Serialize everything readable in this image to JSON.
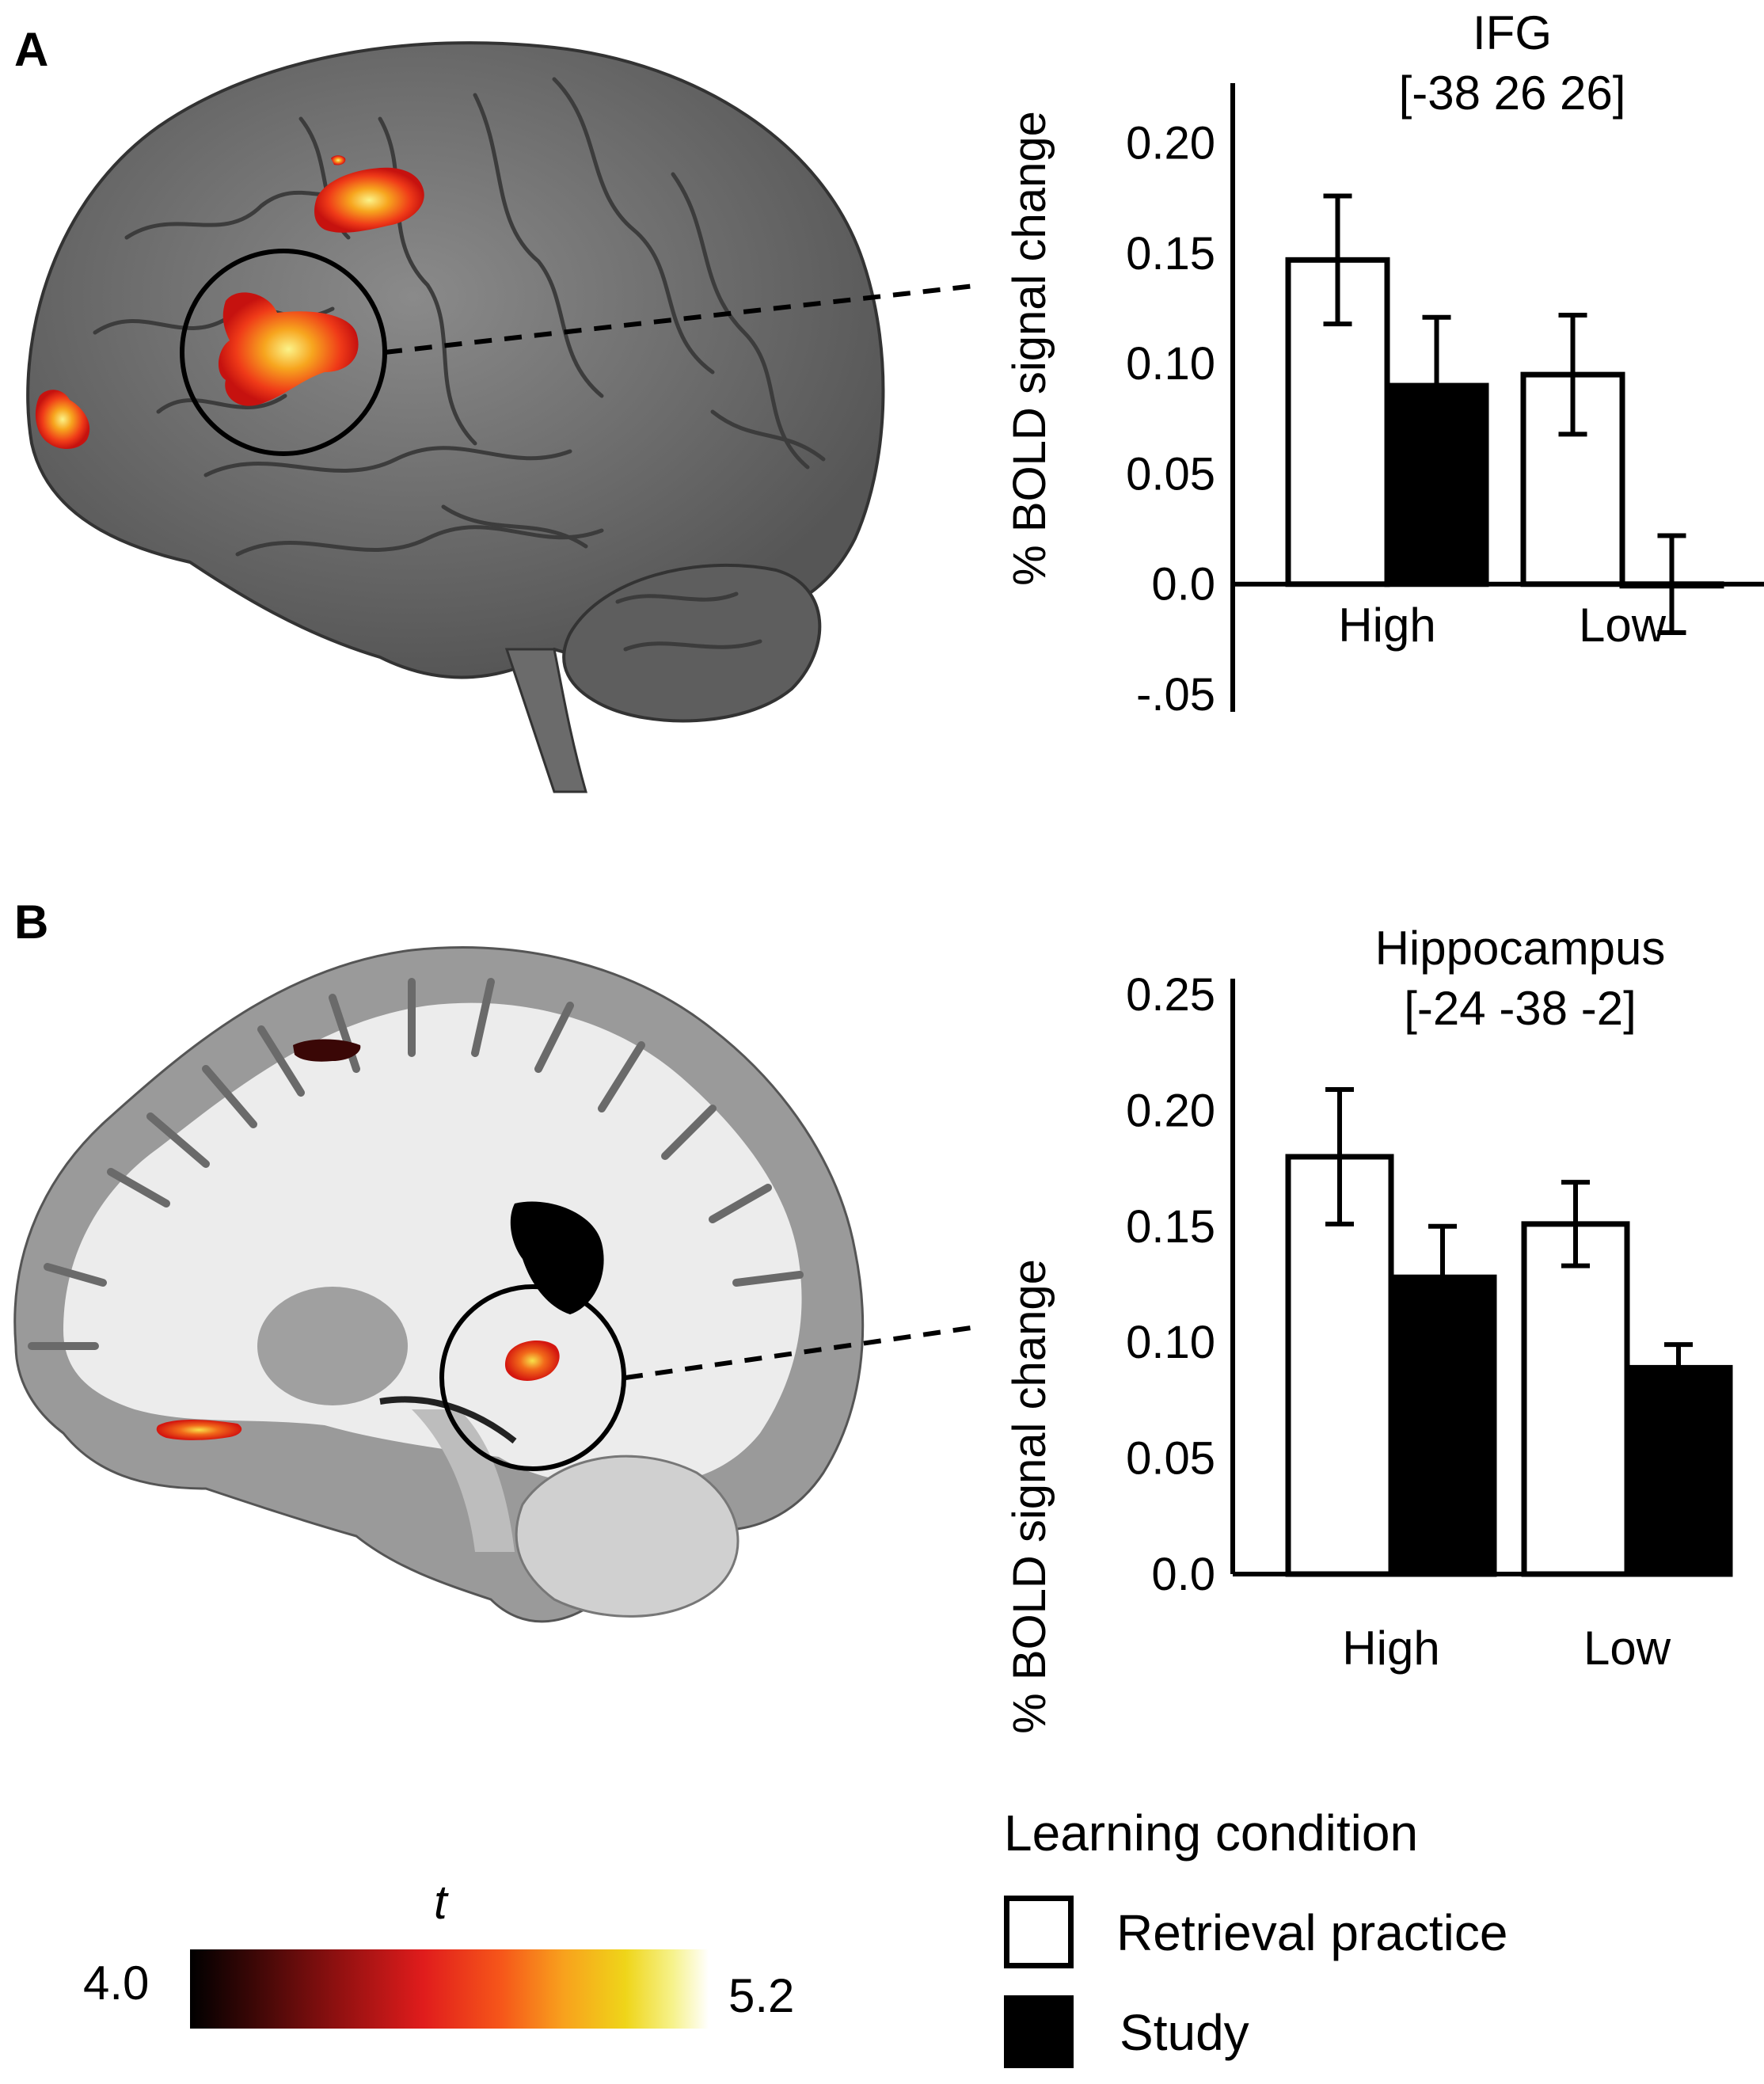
{
  "panels": {
    "a": {
      "letter": "A"
    },
    "b": {
      "letter": "B"
    }
  },
  "colors": {
    "retrieval": "#ffffff",
    "study": "#000000",
    "activation_core": "#f6e94a",
    "activation_edge": "#e01c1c"
  },
  "chart_data": [
    {
      "type": "bar",
      "title": "IFG",
      "subtitle": "[-38 26 26]",
      "ylabel": "% BOLD signal change",
      "ylim": [
        -0.05,
        0.22
      ],
      "yticks": [
        {
          "value": 0.2,
          "label": "0.20"
        },
        {
          "value": 0.15,
          "label": "0.15"
        },
        {
          "value": 0.1,
          "label": "0.10"
        },
        {
          "value": 0.05,
          "label": "0.05"
        },
        {
          "value": 0.0,
          "label": "0.0"
        },
        {
          "value": -0.05,
          "label": "-.05"
        }
      ],
      "categories": [
        "High",
        "Low"
      ],
      "series": [
        {
          "name": "Retrieval practice",
          "values": [
            0.147,
            0.095
          ],
          "errors": [
            0.029,
            0.027
          ]
        },
        {
          "name": "Study",
          "values": [
            0.09,
            0.0
          ],
          "errors": [
            0.031,
            0.022
          ]
        }
      ]
    },
    {
      "type": "bar",
      "title": "Hippocampus",
      "subtitle": "[-24 -38 -2]",
      "ylabel": "% BOLD signal change",
      "ylim": [
        0,
        0.25
      ],
      "yticks": [
        {
          "value": 0.25,
          "label": "0.25"
        },
        {
          "value": 0.2,
          "label": "0.20"
        },
        {
          "value": 0.15,
          "label": "0.15"
        },
        {
          "value": 0.1,
          "label": "0.10"
        },
        {
          "value": 0.05,
          "label": "0.05"
        },
        {
          "value": 0.0,
          "label": "0.0"
        }
      ],
      "categories": [
        "High",
        "Low"
      ],
      "series": [
        {
          "name": "Retrieval practice",
          "values": [
            0.18,
            0.151
          ],
          "errors": [
            0.029,
            0.018
          ]
        },
        {
          "name": "Study",
          "values": [
            0.128,
            0.089
          ],
          "errors": [
            0.022,
            0.01
          ]
        }
      ]
    }
  ],
  "colorbar": {
    "label": "t",
    "min_label": "4.0",
    "max_label": "5.2"
  },
  "legend": {
    "title": "Learning condition",
    "items": [
      {
        "label": "Retrieval practice",
        "fill": "#ffffff"
      },
      {
        "label": "Study",
        "fill": "#000000"
      }
    ]
  }
}
